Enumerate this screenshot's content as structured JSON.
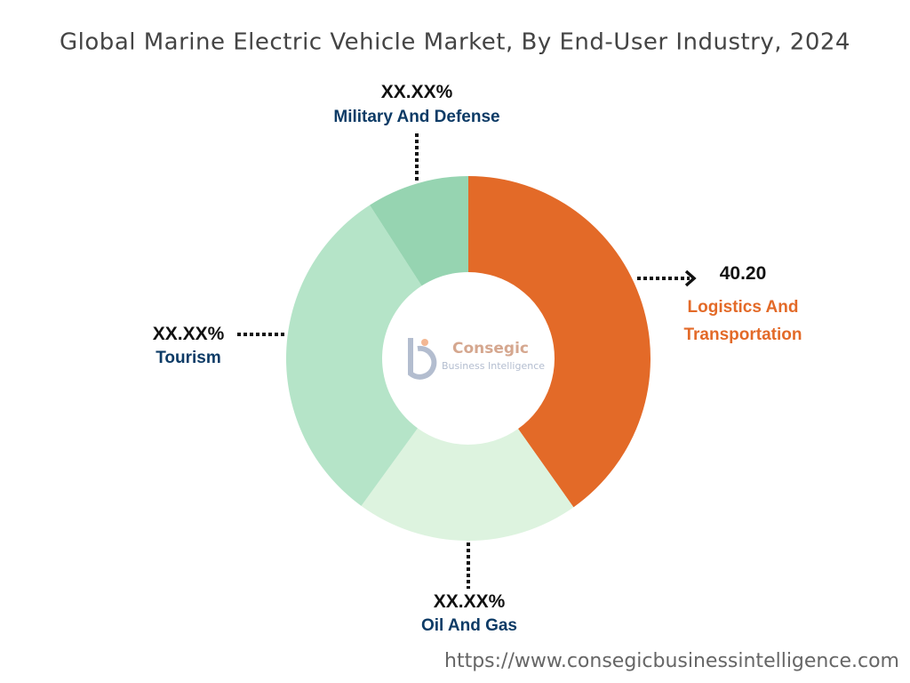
{
  "chart_data": {
    "type": "donut",
    "title": "Global Marine Electric Vehicle Market, By End-User Industry, 2024",
    "categories": [
      "Logistics And Transportation",
      "Oil And Gas",
      "Tourism",
      "Military And Defense"
    ],
    "values": [
      40.2,
      19.8,
      30.9,
      9.1
    ],
    "value_labels": [
      "40.20",
      "XX.XX%",
      "XX.XX%",
      "XX.XX%"
    ],
    "colors": [
      "#e36a28",
      "#ddf3df",
      "#b5e4c8",
      "#96d4b1"
    ],
    "label_colors": [
      "#e36a28",
      "#0d3b66",
      "#0d3b66",
      "#0d3b66"
    ]
  },
  "logo": {
    "name": "Consegic",
    "tagline": "Business Intelligence"
  },
  "source": "https://www.consegicbusinessintelligence.com"
}
